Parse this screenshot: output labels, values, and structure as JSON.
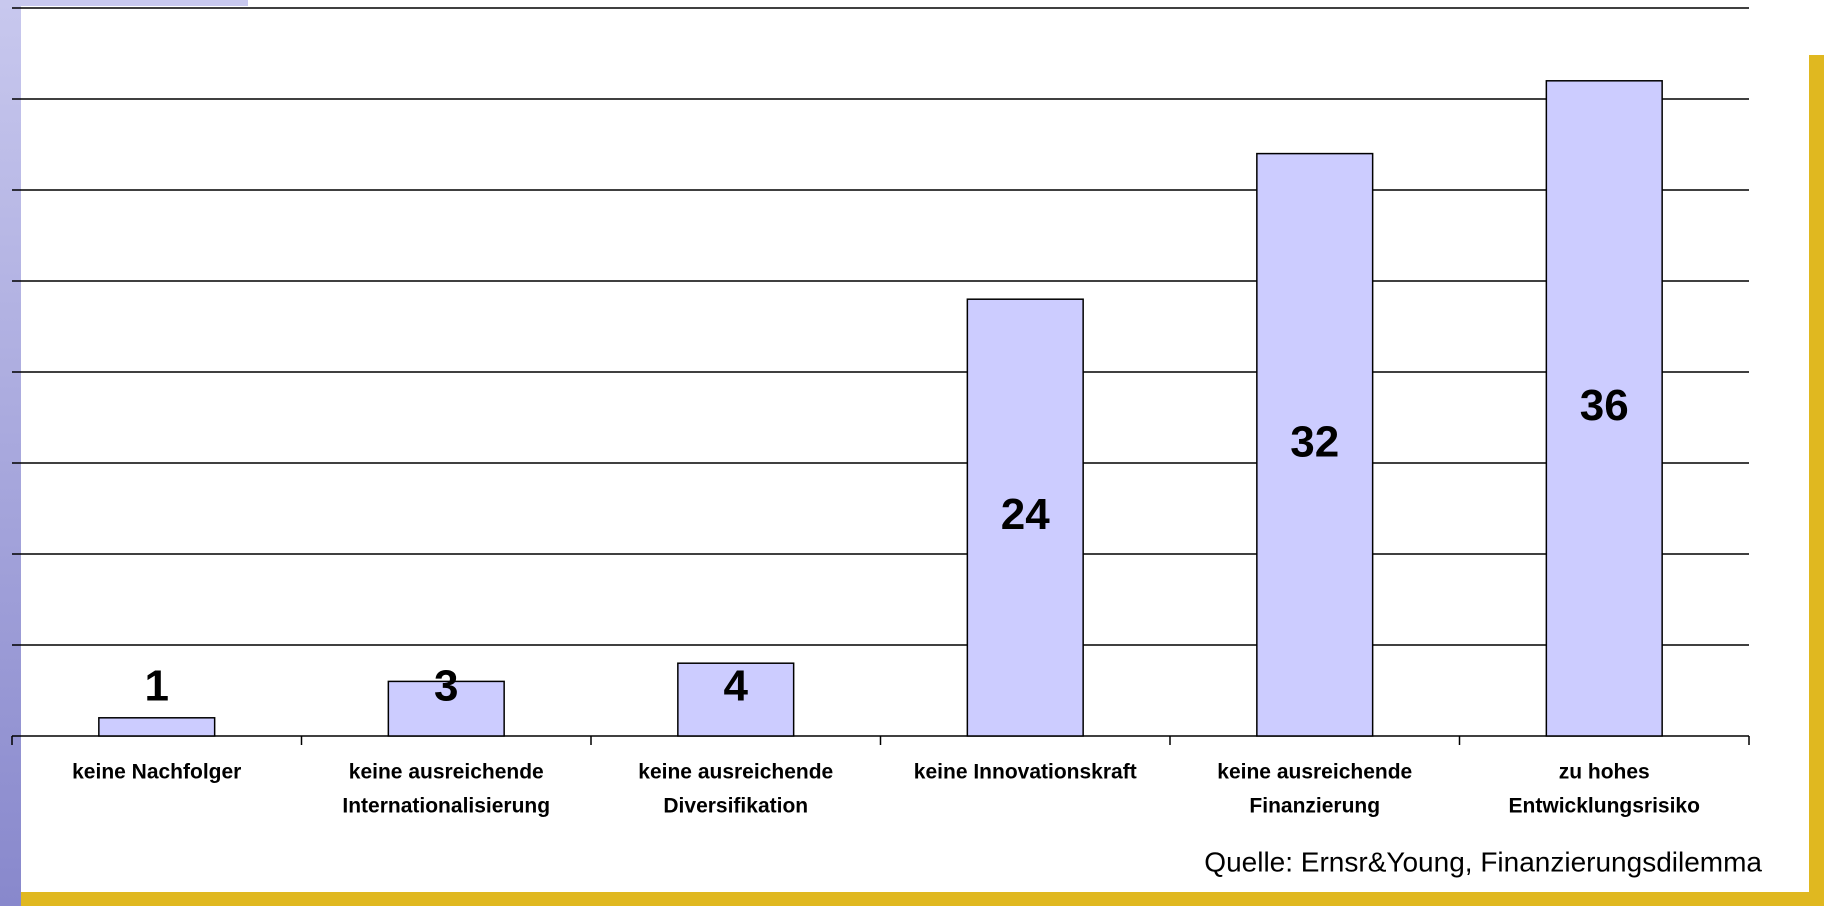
{
  "chart_data": {
    "type": "bar",
    "categories": [
      [
        "keine Nachfolger"
      ],
      [
        "keine ausreichende",
        "Internationalisierung"
      ],
      [
        "keine ausreichende",
        "Diversifikation"
      ],
      [
        "keine Innovationskraft"
      ],
      [
        "keine ausreichende",
        "Finanzierung"
      ],
      [
        "zu hohes",
        "Entwicklungsrisiko"
      ]
    ],
    "values": [
      1,
      3,
      4,
      24,
      32,
      36
    ],
    "color": "#ccccff",
    "ylim": [
      0,
      40
    ],
    "yticks": [
      0,
      5,
      10,
      15,
      20,
      25,
      30,
      35,
      40
    ],
    "grid": true,
    "annotation": "Quelle: Ernsr&Young, Finanzierungsdilemma"
  }
}
